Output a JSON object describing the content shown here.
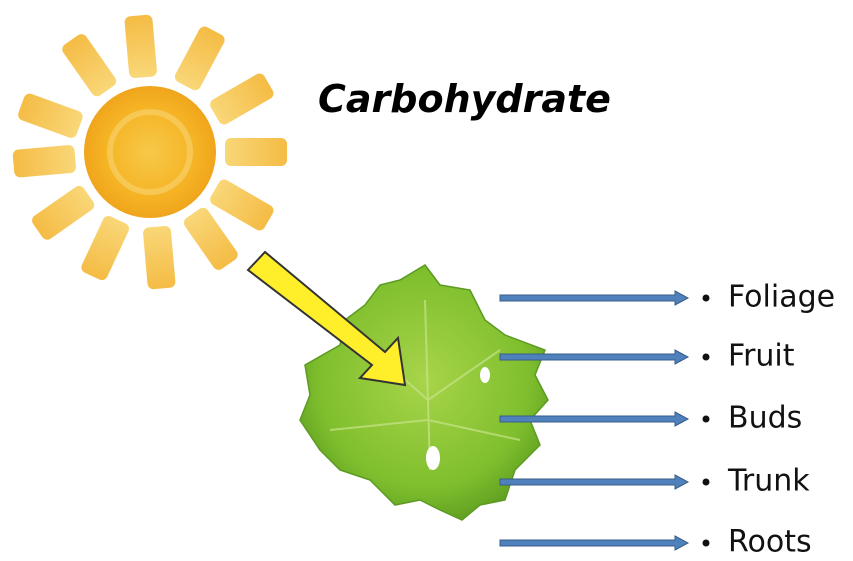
{
  "title": "Carbohydrate",
  "items": [
    "Foliage",
    "Fruit",
    "Buds",
    "Trunk",
    "Roots"
  ]
}
